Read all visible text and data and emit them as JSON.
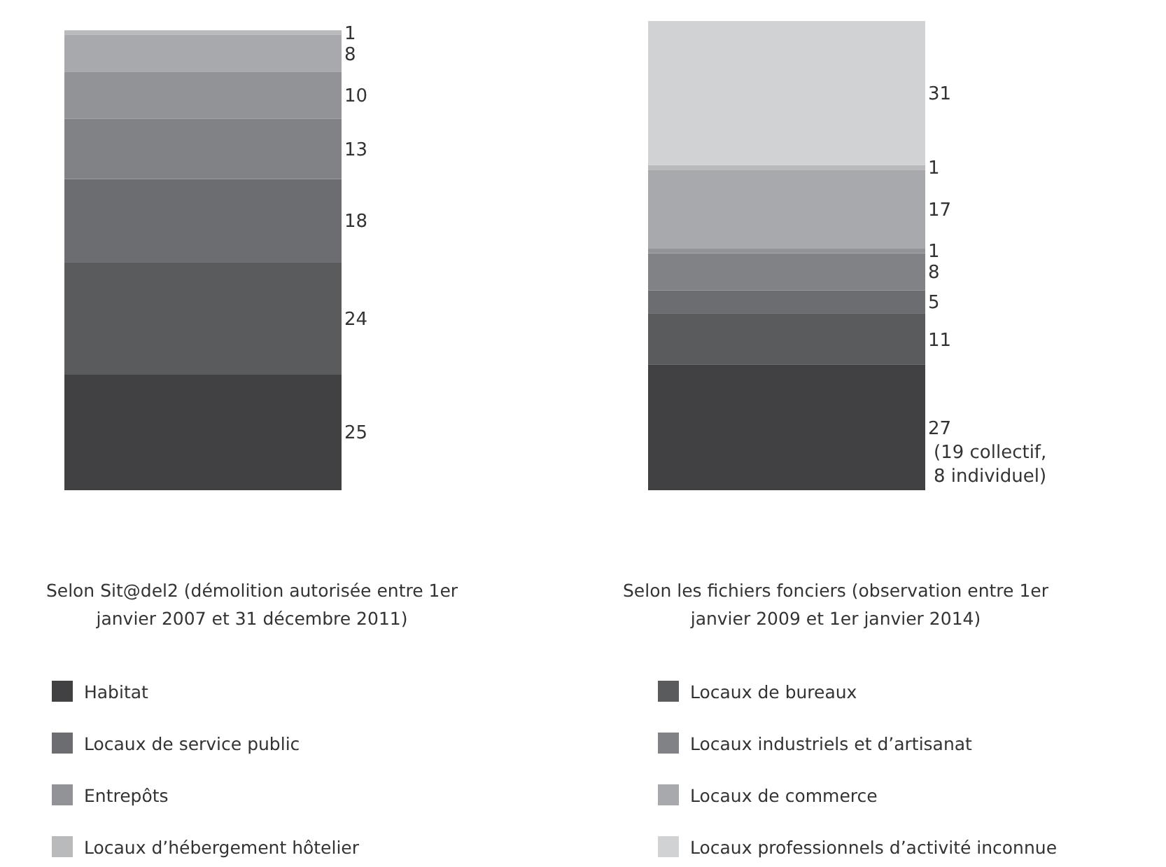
{
  "chart_data": {
    "type": "bar",
    "stacked": true,
    "categories": [
      "Selon Sit@del2 (démolition autorisée entre 1er janvier 2007 et 31 décembre 2011)",
      "Selon les fichiers fonciers (observation entre 1er janvier 2009 et 1er janvier 2014)"
    ],
    "data_labels": true,
    "legend": "bottom",
    "series": [
      {
        "name": "Habitat",
        "color": "#414143",
        "values": [
          25,
          27
        ]
      },
      {
        "name": "Locaux de bureaux",
        "color": "#5a5b5d",
        "values": [
          24,
          11
        ]
      },
      {
        "name": "Locaux de service public",
        "color": "#6c6d70",
        "values": [
          18,
          5
        ]
      },
      {
        "name": "Locaux industriels et d’artisanat",
        "color": "#818285",
        "values": [
          13,
          8
        ]
      },
      {
        "name": "Entrepôts",
        "color": "#929396",
        "values": [
          10,
          1
        ]
      },
      {
        "name": "Locaux de commerce",
        "color": "#a8a9ac",
        "values": [
          8,
          17
        ]
      },
      {
        "name": "Locaux d’hébergement hôtelier",
        "color": "#b9babc",
        "values": [
          1,
          1
        ]
      },
      {
        "name": "Locaux professionnels d’activité inconnue",
        "color": "#d1d2d4",
        "values": [
          null,
          31
        ]
      }
    ],
    "annotations": [
      "(19 collectif, 8 individuel)"
    ]
  }
}
